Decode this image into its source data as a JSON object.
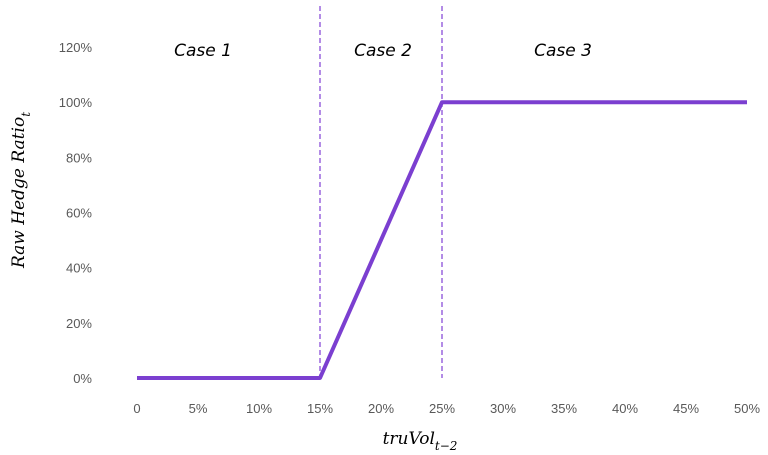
{
  "chart_data": {
    "type": "line",
    "x": [
      0,
      5,
      10,
      15,
      20,
      25,
      30,
      35,
      40,
      45,
      50
    ],
    "x_tick_labels": [
      "0",
      "5%",
      "10%",
      "15%",
      "20%",
      "25%",
      "30%",
      "35%",
      "40%",
      "45%",
      "50%"
    ],
    "y_tick_values": [
      0,
      20,
      40,
      60,
      80,
      100,
      120
    ],
    "y_tick_labels": [
      "0%",
      "20%",
      "40%",
      "60%",
      "80%",
      "100%",
      "120%"
    ],
    "series": [
      {
        "x": [
          0,
          5,
          10,
          15,
          20,
          25,
          30,
          35,
          40,
          45,
          50
        ],
        "values": [
          0,
          0,
          0,
          0,
          50,
          100,
          100,
          100,
          100,
          100,
          100
        ]
      }
    ],
    "xlim": [
      0,
      50
    ],
    "ylim": [
      0,
      120
    ],
    "xlabel": {
      "base": "truVol",
      "subscript": "t−2"
    },
    "ylabel": {
      "base": "Raw Hedge Ratio",
      "subscript": "t"
    },
    "vlines": [
      15,
      25
    ],
    "annotations": [
      "Case 1",
      "Case 2",
      "Case 3"
    ],
    "grid": false,
    "line_color": "#7B3FD0",
    "vline_color": "#8A4FD8"
  }
}
